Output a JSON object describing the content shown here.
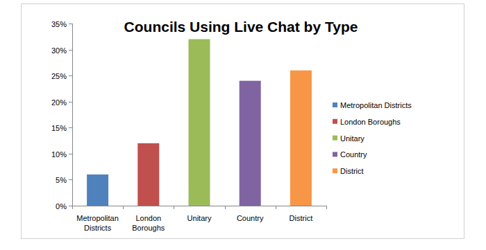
{
  "chart_data": {
    "type": "bar",
    "title": "Councils Using Live Chat by Type",
    "categories": [
      "Metropolitan Districts",
      "London Boroughs",
      "Unitary",
      "Country",
      "District"
    ],
    "values": [
      6,
      12,
      32,
      24,
      26
    ],
    "colors": [
      "#4f81bd",
      "#c0504d",
      "#9bbb59",
      "#8064a2",
      "#f79646"
    ],
    "ylim": [
      0,
      35
    ],
    "yticks": [
      {
        "value": 0,
        "label": "0%"
      },
      {
        "value": 5,
        "label": "5%"
      },
      {
        "value": 10,
        "label": "10%"
      },
      {
        "value": 15,
        "label": "15%"
      },
      {
        "value": 20,
        "label": "20%"
      },
      {
        "value": 25,
        "label": "25%"
      },
      {
        "value": 30,
        "label": "30%"
      },
      {
        "value": 35,
        "label": "35%"
      }
    ],
    "grid": false,
    "legend": "right"
  }
}
